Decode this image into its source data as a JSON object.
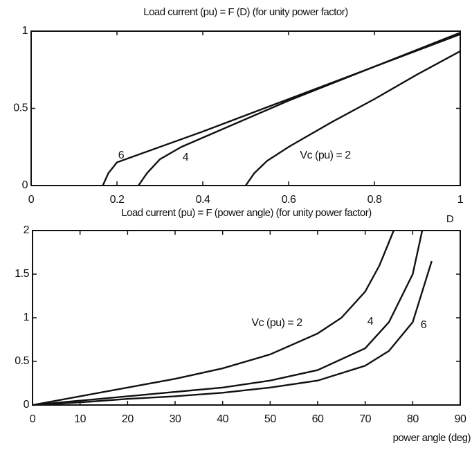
{
  "chart_data": [
    {
      "type": "line",
      "title": "Load current (pu) =  F (D)  (for unity power factor)",
      "xlabel": "D",
      "xlim": [
        0,
        1
      ],
      "xticks": [
        0,
        0.2,
        0.4,
        0.6,
        0.8,
        1
      ],
      "ylim": [
        0,
        1
      ],
      "yticks": [
        0,
        0.5,
        1
      ],
      "series": [
        {
          "name": "Vc (pu) = 2",
          "color": "#111111",
          "x": [
            0.5,
            0.52,
            0.55,
            0.6,
            0.7,
            0.8,
            0.9,
            1
          ],
          "values": [
            0,
            0.08,
            0.16,
            0.25,
            0.41,
            0.56,
            0.72,
            0.87
          ]
        },
        {
          "name": "4",
          "color": "#111111",
          "x": [
            0.25,
            0.27,
            0.3,
            0.35,
            0.4,
            0.6,
            0.8,
            1
          ],
          "values": [
            0,
            0.08,
            0.17,
            0.25,
            0.31,
            0.55,
            0.77,
            0.98
          ]
        },
        {
          "name": "6",
          "color": "#111111",
          "x": [
            0.167,
            0.18,
            0.2,
            0.25,
            0.4,
            0.6,
            0.8,
            1
          ],
          "values": [
            0,
            0.08,
            0.15,
            0.2,
            0.35,
            0.56,
            0.77,
            0.99
          ]
        }
      ]
    },
    {
      "type": "line",
      "title": "Load current (pu) =  F (power angle)  (for unity power factor)",
      "xlabel": "power angle (deg)",
      "xlim": [
        0,
        90
      ],
      "xticks": [
        0,
        10,
        20,
        30,
        40,
        50,
        60,
        70,
        80,
        90
      ],
      "ylim": [
        0,
        2
      ],
      "yticks": [
        0,
        0.5,
        1,
        1.5,
        2
      ],
      "series": [
        {
          "name": "Vc (pu) = 2",
          "color": "#111111",
          "x": [
            0,
            10,
            20,
            30,
            40,
            50,
            60,
            65,
            70,
            73,
            76
          ],
          "values": [
            0,
            0.1,
            0.2,
            0.3,
            0.42,
            0.58,
            0.82,
            1.0,
            1.3,
            1.6,
            2
          ]
        },
        {
          "name": "4",
          "color": "#111111",
          "x": [
            0,
            10,
            20,
            30,
            40,
            50,
            60,
            70,
            75,
            80,
            82
          ],
          "values": [
            0,
            0.05,
            0.1,
            0.15,
            0.2,
            0.28,
            0.4,
            0.65,
            0.95,
            1.5,
            2
          ]
        },
        {
          "name": "6",
          "color": "#111111",
          "x": [
            0,
            10,
            20,
            30,
            40,
            50,
            60,
            70,
            75,
            80,
            84
          ],
          "values": [
            0,
            0.03,
            0.07,
            0.1,
            0.14,
            0.2,
            0.28,
            0.45,
            0.62,
            0.95,
            1.65
          ]
        }
      ]
    }
  ]
}
